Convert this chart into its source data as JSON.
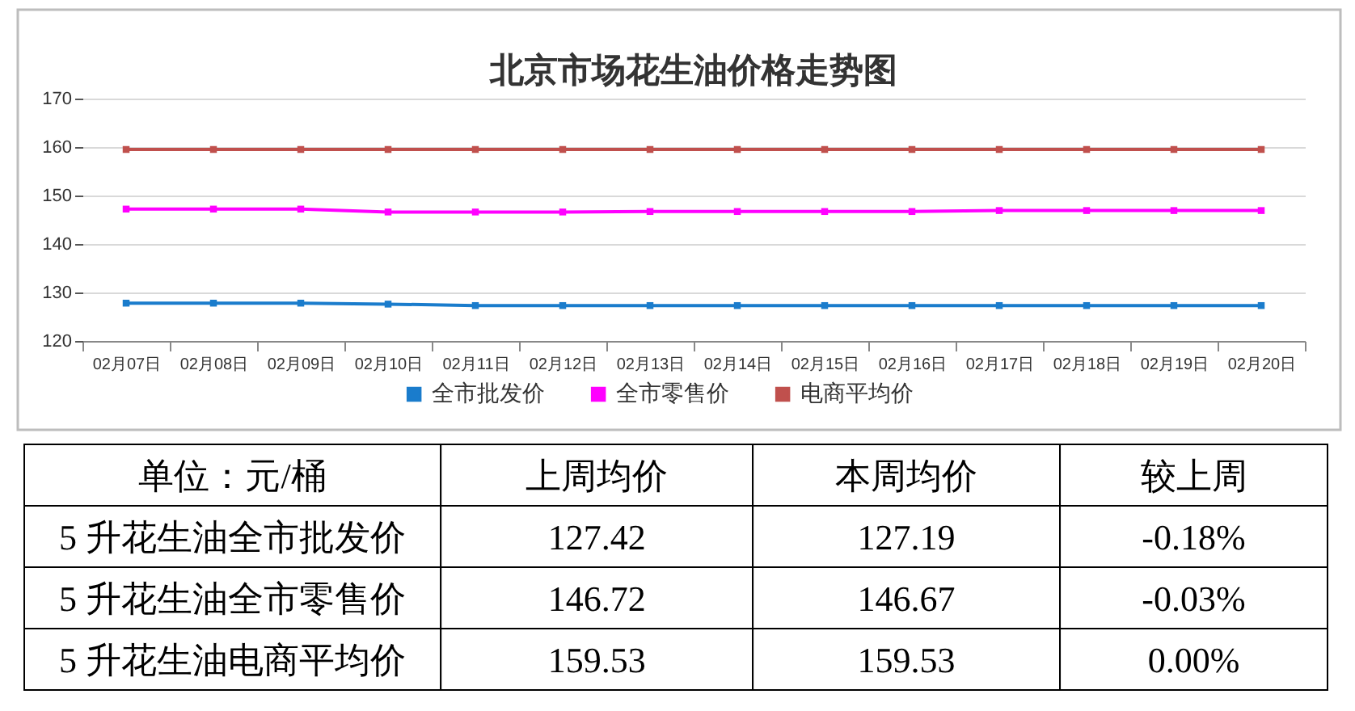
{
  "chart_data": [
    {
      "type": "line",
      "title": "北京市场花生油价格走势图",
      "categories": [
        "02月07日",
        "02月08日",
        "02月09日",
        "02月10日",
        "02月11日",
        "02月12日",
        "02月13日",
        "02月14日",
        "02月15日",
        "02月16日",
        "02月17日",
        "02月18日",
        "02月19日",
        "02月20日"
      ],
      "series": [
        {
          "name": "全市批发价",
          "color": "#1a7ccc",
          "values": [
            127.8,
            127.8,
            127.8,
            127.6,
            127.3,
            127.3,
            127.3,
            127.3,
            127.3,
            127.3,
            127.3,
            127.3,
            127.3,
            127.3
          ]
        },
        {
          "name": "全市零售价",
          "color": "#ff00ff",
          "values": [
            147.2,
            147.2,
            147.2,
            146.6,
            146.6,
            146.6,
            146.7,
            146.7,
            146.7,
            146.7,
            146.9,
            146.9,
            146.9,
            146.9
          ]
        },
        {
          "name": "电商平均价",
          "color": "#c0504d",
          "values": [
            159.5,
            159.5,
            159.5,
            159.5,
            159.5,
            159.5,
            159.5,
            159.5,
            159.5,
            159.5,
            159.5,
            159.5,
            159.5,
            159.5
          ]
        }
      ],
      "ylim": [
        120,
        170
      ],
      "yticks": [
        120,
        130,
        140,
        150,
        160,
        170
      ],
      "grid": "y",
      "legend": "bottom",
      "marker": "square",
      "line_style": "solid"
    },
    {
      "type": "other",
      "annotations": [
        "单位：元/桶"
      ],
      "categories": [
        "上周均价",
        "本周均价",
        "较上周"
      ],
      "y_categories": [
        "5 升花生油全市批发价",
        "5 升花生油全市零售价",
        "5 升花生油电商平均价"
      ],
      "cell_labels": [
        [
          "127.42",
          "127.19",
          "-0.18%"
        ],
        [
          "146.72",
          "146.67",
          "-0.03%"
        ],
        [
          "159.53",
          "159.53",
          "0.00%"
        ]
      ]
    }
  ]
}
